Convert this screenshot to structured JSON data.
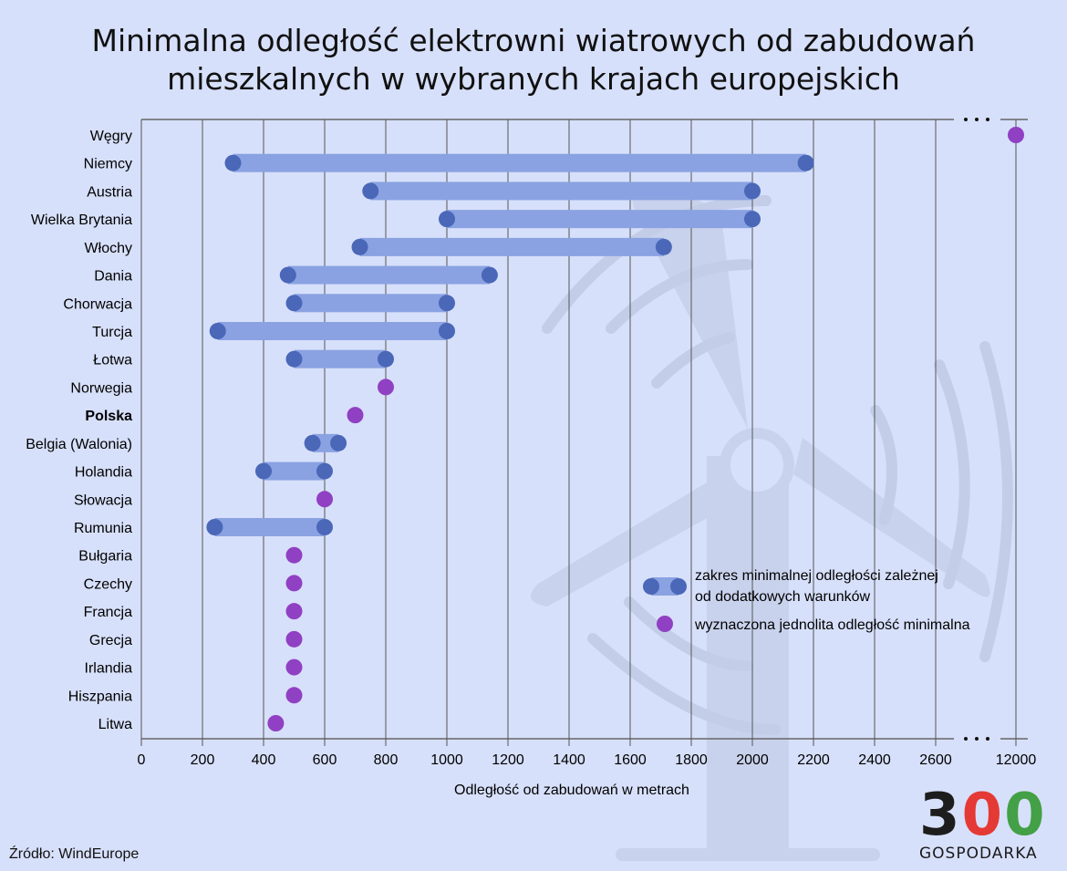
{
  "title_line1": "Minimalna odległość elektrowni wiatrowych od zabudowań",
  "title_line2": "mieszkalnych w wybranych krajach europejskich",
  "source": "Źródło: WindEurope",
  "logo": {
    "digits": "300",
    "word": "GOSPODARKA"
  },
  "colors": {
    "background": "#d7e0fa",
    "range_bar": "#8aa2e2",
    "range_dot": "#4a67b8",
    "single_dot": "#9040c2",
    "grid": "#555555"
  },
  "chart_data": {
    "type": "range-dot",
    "title": "Minimalna odległość elektrowni wiatrowych od zabudowań mieszkalnych w wybranych krajach europejskich",
    "xlabel": "Odległość od zabudowań w metrach",
    "ylabel": "",
    "xlim": [
      0,
      2700
    ],
    "axis_break": "after 2600, then 12000",
    "x_ticks": [
      "0",
      "200",
      "400",
      "600",
      "800",
      "1000",
      "1200",
      "1400",
      "1600",
      "1800",
      "2000",
      "2200",
      "2400",
      "2600",
      "12000"
    ],
    "grid": true,
    "legend_position": "bottom-right",
    "legend": [
      {
        "type": "range",
        "label_line1": "zakres minimalnej odległości zależnej",
        "label_line2": "od dodatkowych warunków"
      },
      {
        "type": "single",
        "label_line1": "wyznaczona jednolita odległość minimalna"
      }
    ],
    "rows": [
      {
        "country": "Węgry",
        "single": 12000
      },
      {
        "country": "Niemcy",
        "min": 300,
        "max": 2175
      },
      {
        "country": "Austria",
        "min": 750,
        "max": 2000
      },
      {
        "country": "Wielka Brytania",
        "min": 1000,
        "max": 2000
      },
      {
        "country": "Włochy",
        "min": 715,
        "max": 1710
      },
      {
        "country": "Dania",
        "min": 480,
        "max": 1140
      },
      {
        "country": "Chorwacja",
        "min": 500,
        "max": 1000
      },
      {
        "country": "Turcja",
        "min": 250,
        "max": 1000
      },
      {
        "country": "Łotwa",
        "min": 500,
        "max": 800
      },
      {
        "country": "Norwegia",
        "single": 800
      },
      {
        "country": "Polska",
        "single": 700,
        "bold": true
      },
      {
        "country": "Belgia (Walonia)",
        "min": 560,
        "max": 645
      },
      {
        "country": "Holandia",
        "min": 400,
        "max": 600
      },
      {
        "country": "Słowacja",
        "single": 600
      },
      {
        "country": "Rumunia",
        "min": 240,
        "max": 600
      },
      {
        "country": "Bułgaria",
        "single": 500
      },
      {
        "country": "Czechy",
        "single": 500
      },
      {
        "country": "Francja",
        "single": 500
      },
      {
        "country": "Grecja",
        "single": 500
      },
      {
        "country": "Irlandia",
        "single": 500
      },
      {
        "country": "Hiszpania",
        "single": 500
      },
      {
        "country": "Litwa",
        "single": 440
      }
    ]
  }
}
